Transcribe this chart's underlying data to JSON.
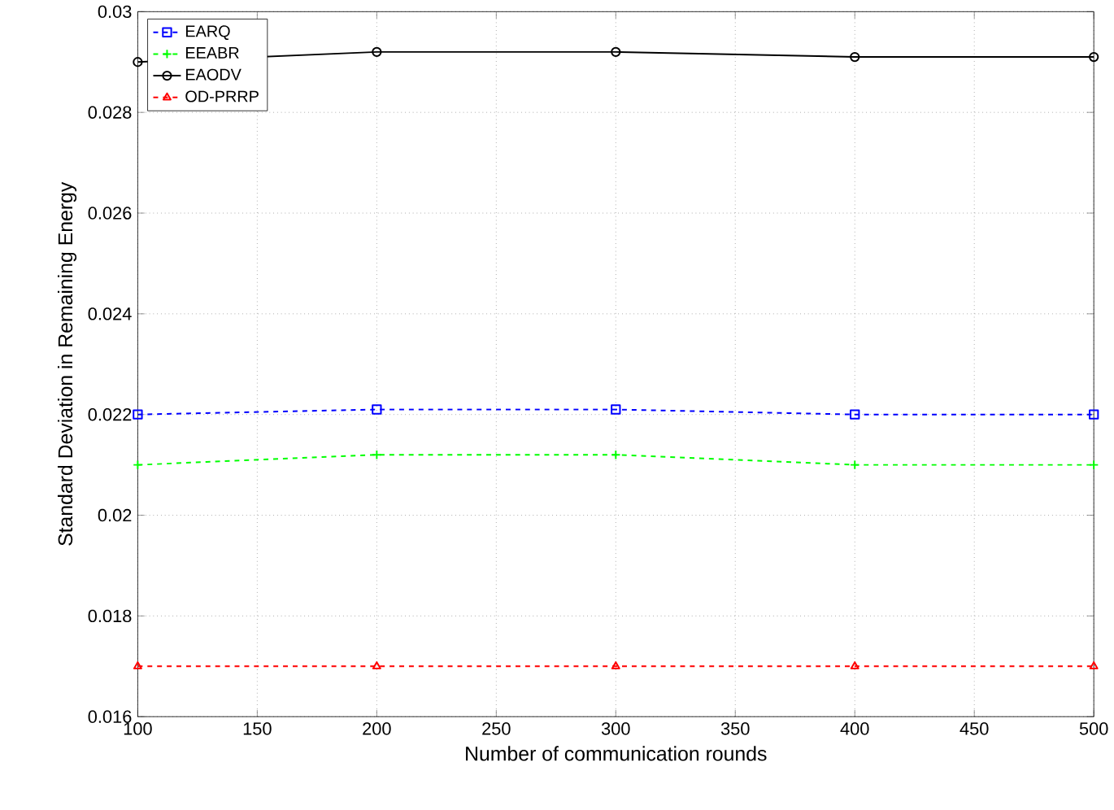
{
  "chart_data": {
    "type": "line",
    "xlabel": "Number of communication rounds",
    "ylabel": "Standard Deviation in Remaining Energy",
    "x": [
      100,
      200,
      300,
      400,
      500
    ],
    "series": [
      {
        "name": "EARQ",
        "color": "#0000ff",
        "values": [
          0.022,
          0.0221,
          0.0221,
          0.022,
          0.022
        ],
        "marker": "square",
        "line_style": "dashed"
      },
      {
        "name": "EEABR",
        "color": "#00ff00",
        "values": [
          0.021,
          0.0212,
          0.0212,
          0.021,
          0.021
        ],
        "marker": "cross",
        "line_style": "dashed"
      },
      {
        "name": "EAODV",
        "color": "#000000",
        "values": [
          0.029,
          0.0292,
          0.0292,
          0.0291,
          0.0291
        ],
        "marker": "circle",
        "line_style": "solid"
      },
      {
        "name": "OD-PRRP",
        "color": "#ff0000",
        "values": [
          0.017,
          0.017,
          0.017,
          0.017,
          0.017
        ],
        "marker": "triangle",
        "line_style": "dashed"
      }
    ],
    "xlim": [
      100,
      500
    ],
    "ylim": [
      0.016,
      0.03
    ],
    "xticks": [
      100,
      150,
      200,
      250,
      300,
      350,
      400,
      450,
      500
    ],
    "yticks": [
      0.016,
      0.018,
      0.02,
      0.022,
      0.024,
      0.026,
      0.028,
      0.03
    ],
    "grid": true,
    "legend": "top left"
  }
}
